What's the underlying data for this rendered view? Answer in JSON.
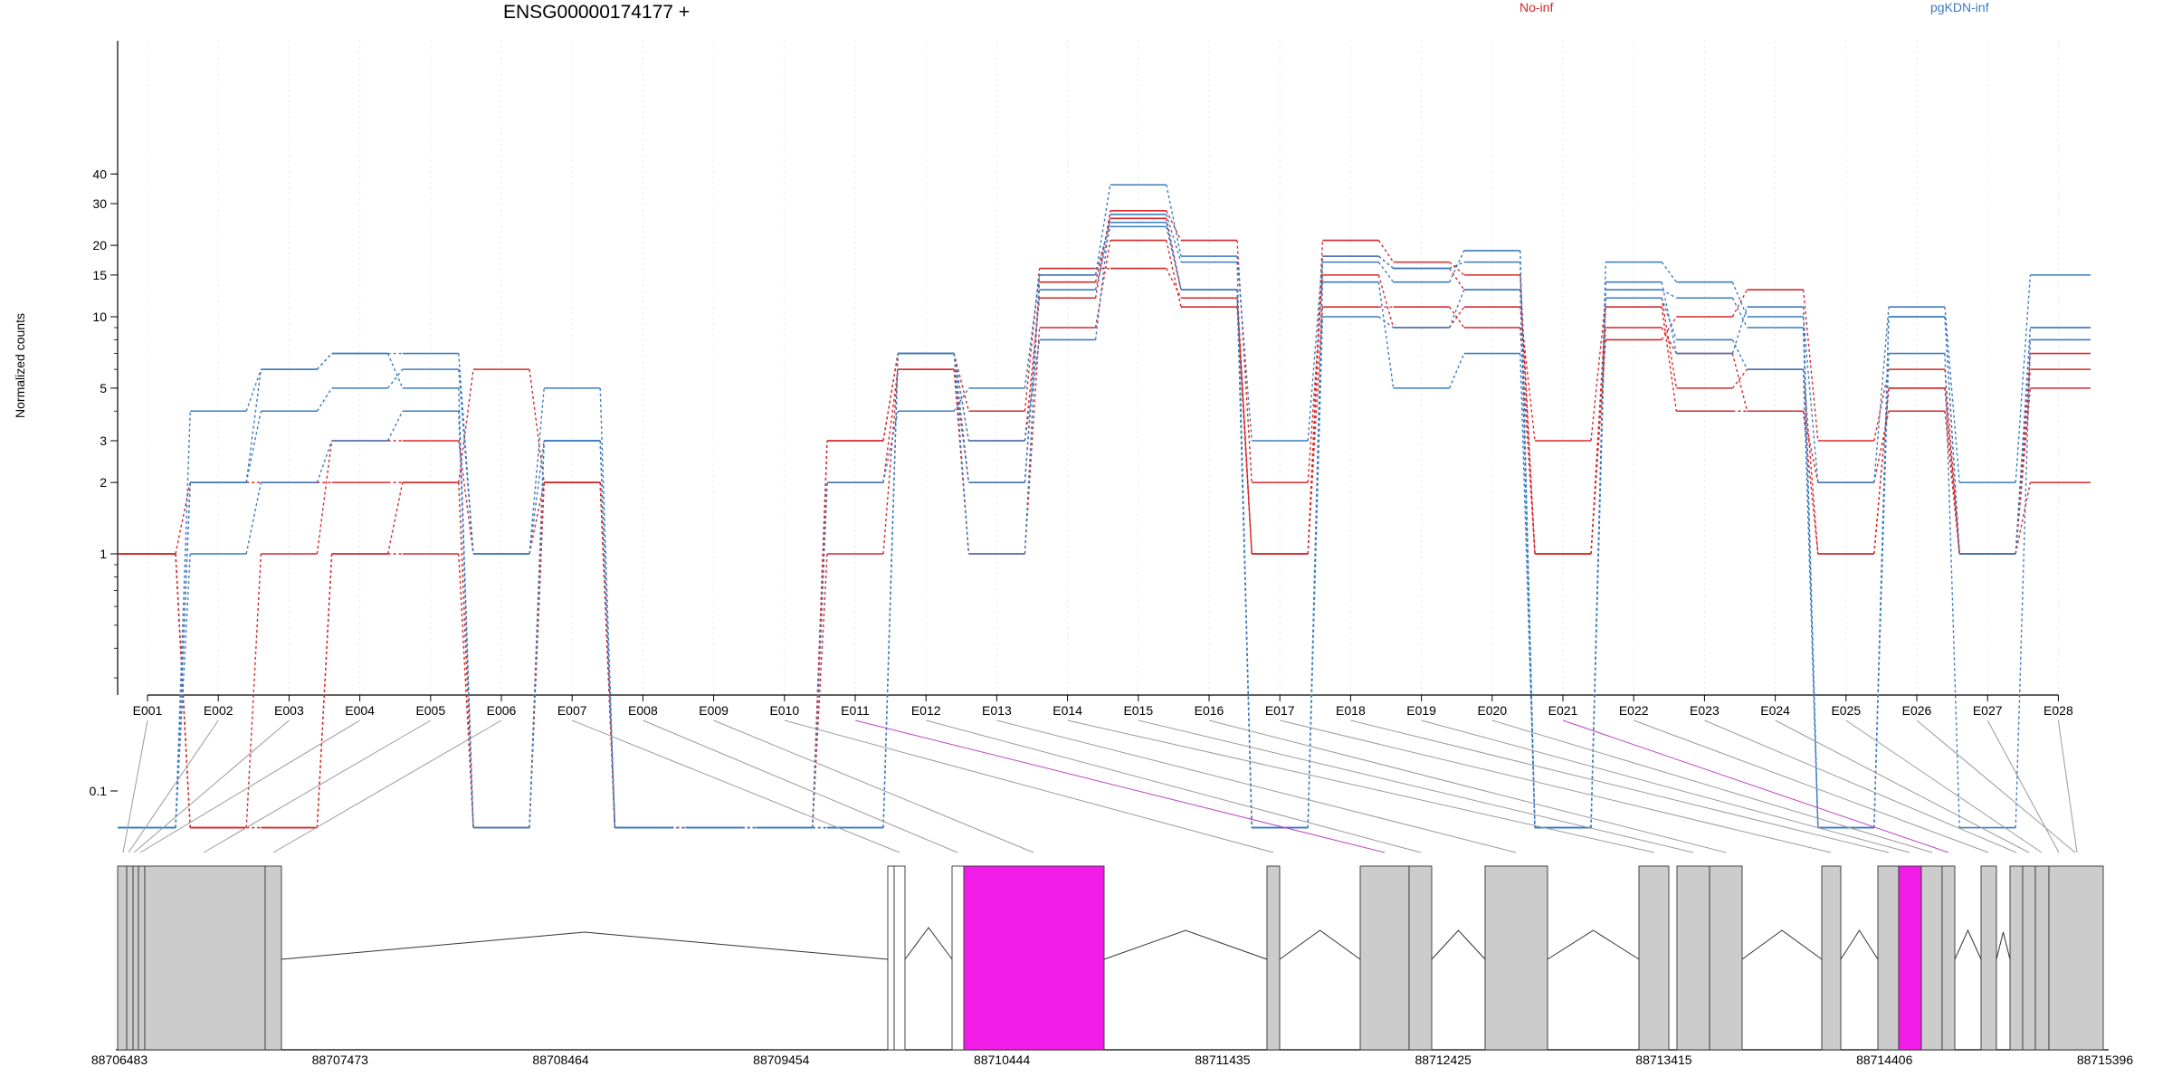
{
  "chart_data": {
    "type": "line",
    "title": "ENSG00000174177 +",
    "ylabel": "Normalized counts",
    "yscale": "log",
    "yticks": [
      0.1,
      1,
      2,
      3,
      5,
      10,
      15,
      20,
      30,
      40
    ],
    "ytick_labels": [
      "0.1",
      "1",
      "2",
      "3",
      "5",
      "10",
      "15",
      "20",
      "30",
      "40"
    ],
    "zero_floor": 0.07,
    "categories": [
      "E001",
      "E002",
      "E003",
      "E004",
      "E005",
      "E006",
      "E007",
      "E008",
      "E009",
      "E010",
      "E011",
      "E012",
      "E013",
      "E014",
      "E015",
      "E016",
      "E017",
      "E018",
      "E019",
      "E020",
      "E021",
      "E022",
      "E023",
      "E024",
      "E025",
      "E026",
      "E027",
      "E028"
    ],
    "legend": [
      {
        "name": "No-inf",
        "color": "#d62728"
      },
      {
        "name": "pgKDN-inf",
        "color": "#3a7bc0"
      }
    ],
    "grid": "vertical-dotted",
    "highlighted_exons": [
      "E011",
      "E021"
    ],
    "series": [
      {
        "group": "No-inf",
        "values": [
          1,
          2,
          2,
          2,
          2,
          6,
          2,
          0,
          0,
          0,
          2,
          6,
          2,
          14,
          26,
          13,
          1,
          18,
          16,
          13,
          1,
          11,
          4,
          4,
          2,
          4,
          1,
          2
        ]
      },
      {
        "group": "No-inf",
        "values": [
          1,
          0,
          1,
          3,
          3,
          1,
          2,
          0,
          0,
          0,
          3,
          7,
          3,
          12,
          28,
          21,
          2,
          15,
          9,
          11,
          3,
          12,
          5,
          6,
          1,
          5,
          1,
          5
        ]
      },
      {
        "group": "No-inf",
        "values": [
          1,
          0,
          0,
          1,
          1,
          0,
          2,
          0,
          0,
          0,
          1,
          6,
          1,
          9,
          21,
          11,
          1,
          21,
          17,
          15,
          1,
          8,
          10,
          13,
          3,
          6,
          1,
          6
        ]
      },
      {
        "group": "No-inf",
        "values": [
          1,
          0,
          0,
          1,
          2,
          0,
          2,
          0,
          0,
          0,
          3,
          7,
          4,
          16,
          16,
          12,
          1,
          11,
          11,
          9,
          1,
          9,
          7,
          4,
          1,
          5,
          1,
          7
        ]
      },
      {
        "group": "pgKDN-inf",
        "values": [
          0,
          4,
          6,
          7,
          7,
          1,
          3,
          0,
          0,
          0,
          2,
          4,
          5,
          15,
          36,
          18,
          3,
          18,
          16,
          17,
          0,
          17,
          14,
          10,
          2,
          11,
          2,
          15
        ]
      },
      {
        "group": "pgKDN-inf",
        "values": [
          0,
          2,
          4,
          5,
          6,
          1,
          5,
          0,
          0,
          0,
          0,
          7,
          3,
          8,
          27,
          17,
          0,
          14,
          5,
          7,
          0,
          13,
          12,
          9,
          0,
          10,
          1,
          9
        ]
      },
      {
        "group": "pgKDN-inf",
        "values": [
          0,
          1,
          2,
          3,
          4,
          0,
          3,
          0,
          0,
          0,
          0,
          7,
          2,
          13,
          24,
          13,
          0,
          17,
          14,
          19,
          0,
          14,
          7,
          11,
          0,
          7,
          0,
          8
        ]
      },
      {
        "group": "pgKDN-inf",
        "values": [
          0,
          2,
          6,
          7,
          5,
          0,
          3,
          0,
          0,
          0,
          0,
          7,
          1,
          15,
          25,
          13,
          0,
          10,
          9,
          13,
          0,
          12,
          8,
          6,
          0,
          10,
          1,
          9
        ]
      }
    ],
    "genome_axis": {
      "tick_labels": [
        "88706483",
        "88707473",
        "88708464",
        "88709454",
        "88710444",
        "88711435",
        "88712425",
        "88713415",
        "88714406",
        "88715396"
      ]
    }
  }
}
